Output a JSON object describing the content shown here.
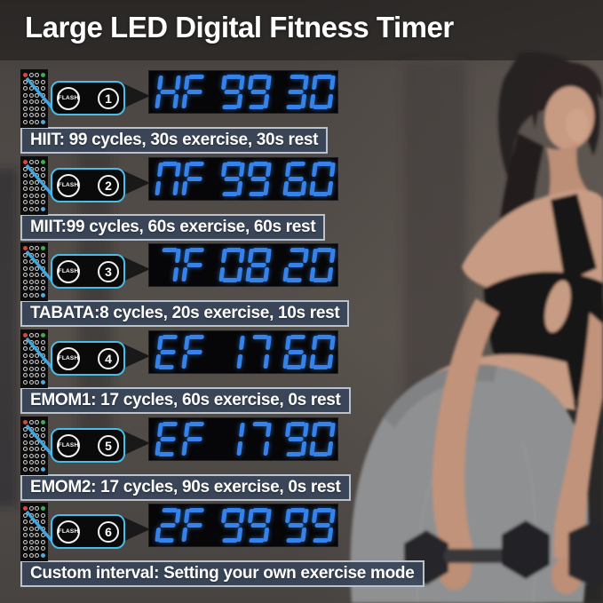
{
  "title": "Large LED Digital Fitness Timer",
  "flash_button_label": "FLASH",
  "modes": [
    {
      "number": "1",
      "display": "HF 99 30",
      "caption": "HIIT: 99 cycles, 30s exercise, 30s rest"
    },
    {
      "number": "2",
      "display": "NF 99 60",
      "caption": "MIIT:99 cycles, 60s exercise, 60s rest"
    },
    {
      "number": "3",
      "display": "7F 08 20",
      "caption": "TABATA:8 cycles, 20s exercise, 10s rest"
    },
    {
      "number": "4",
      "display": "EF 17 60",
      "caption": "EMOM1: 17 cycles, 60s exercise, 0s rest"
    },
    {
      "number": "5",
      "display": "EF 17 90",
      "caption": "EMOM2: 17 cycles, 90s exercise, 0s rest"
    },
    {
      "number": "6",
      "display": "2F 99 99",
      "caption": "Custom interval: Setting your own exercise mode"
    }
  ],
  "remote": {
    "rows": 8,
    "cols": 4
  },
  "colors": {
    "led_blue": "#3583ea",
    "callout_border": "#48bdea",
    "pointer_line": "#3ea6e0",
    "caption_background": "#384559",
    "caption_border": "#b9c2cd",
    "remote_red_button": "#cf4a3f",
    "remote_green_button": "#43a956",
    "remote_blue_button": "#57a8d6",
    "display_background": "#060608"
  }
}
